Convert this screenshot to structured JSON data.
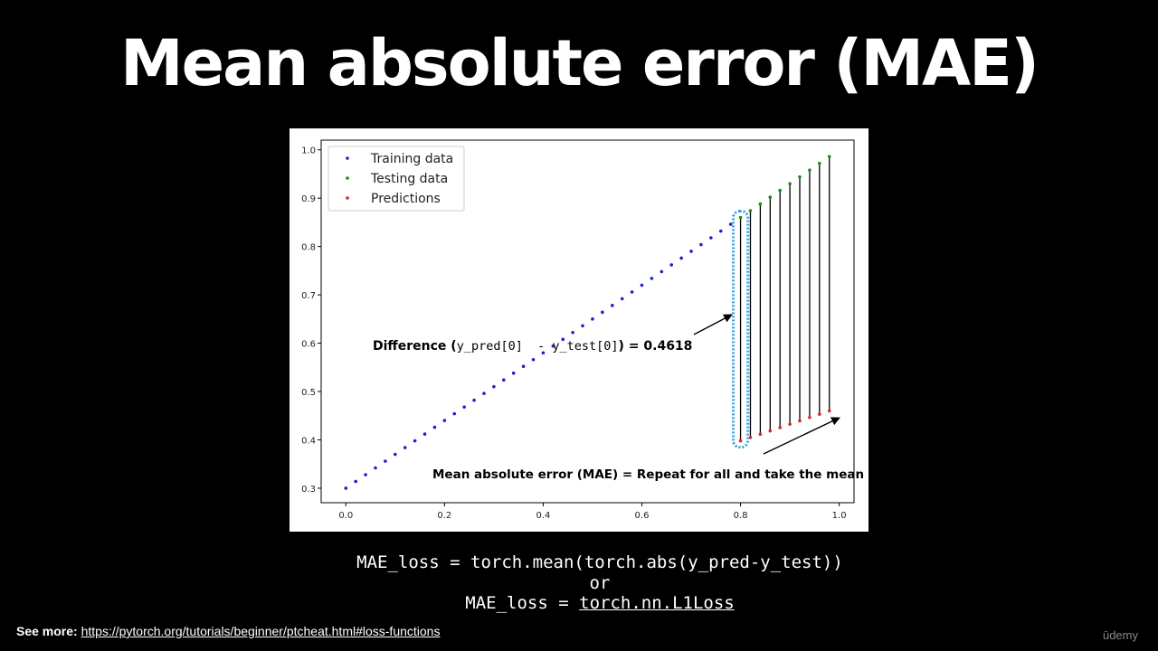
{
  "slide": {
    "title": "Mean absolute error (MAE)",
    "code_line_1": "MAE_loss = torch.mean(torch.abs(y_pred-y_test))",
    "code_or": "or",
    "code_line_3_prefix": "MAE_loss = ",
    "code_line_3_link": "torch.nn.L1Loss",
    "footer_label": "See more:",
    "footer_link": "https://pytorch.org/tutorials/beginner/ptcheat.html#loss-functions",
    "watermark": "ūdemy"
  },
  "annotations": {
    "difference_label": "Difference (",
    "difference_code": "y_pred[0]  - y_test[0]",
    "difference_value": ") = 0.4618",
    "mean_label": "Mean absolute error (MAE) = Repeat for all and take the mean"
  },
  "colors": {
    "training": "#1f1fcf",
    "testing": "#1a8a1a",
    "predictions": "#d62728",
    "highlight": "#3aa0e0"
  },
  "chart_data": {
    "type": "scatter",
    "xlim": [
      -0.05,
      1.03
    ],
    "ylim": [
      0.27,
      1.02
    ],
    "xticks": [
      "0.0",
      "0.2",
      "0.4",
      "0.6",
      "0.8",
      "1.0"
    ],
    "yticks": [
      "0.3",
      "0.4",
      "0.5",
      "0.6",
      "0.7",
      "0.8",
      "0.9",
      "1.0"
    ],
    "legend_position": "top-left",
    "grid": false,
    "series": [
      {
        "name": "Training data",
        "color": "#1f1fcf",
        "x_start": 0.0,
        "x_end": 0.78,
        "x_step": 0.02,
        "slope": 0.7,
        "intercept": 0.3
      },
      {
        "name": "Testing data",
        "color": "#1a8a1a",
        "x_start": 0.8,
        "x_end": 0.98,
        "x_step": 0.02,
        "slope": 0.7,
        "intercept": 0.3
      },
      {
        "name": "Predictions",
        "color": "#d62728",
        "x_start": 0.8,
        "x_end": 0.98,
        "x_step": 0.02,
        "y_start": 0.398,
        "y_end": 0.46
      }
    ]
  }
}
